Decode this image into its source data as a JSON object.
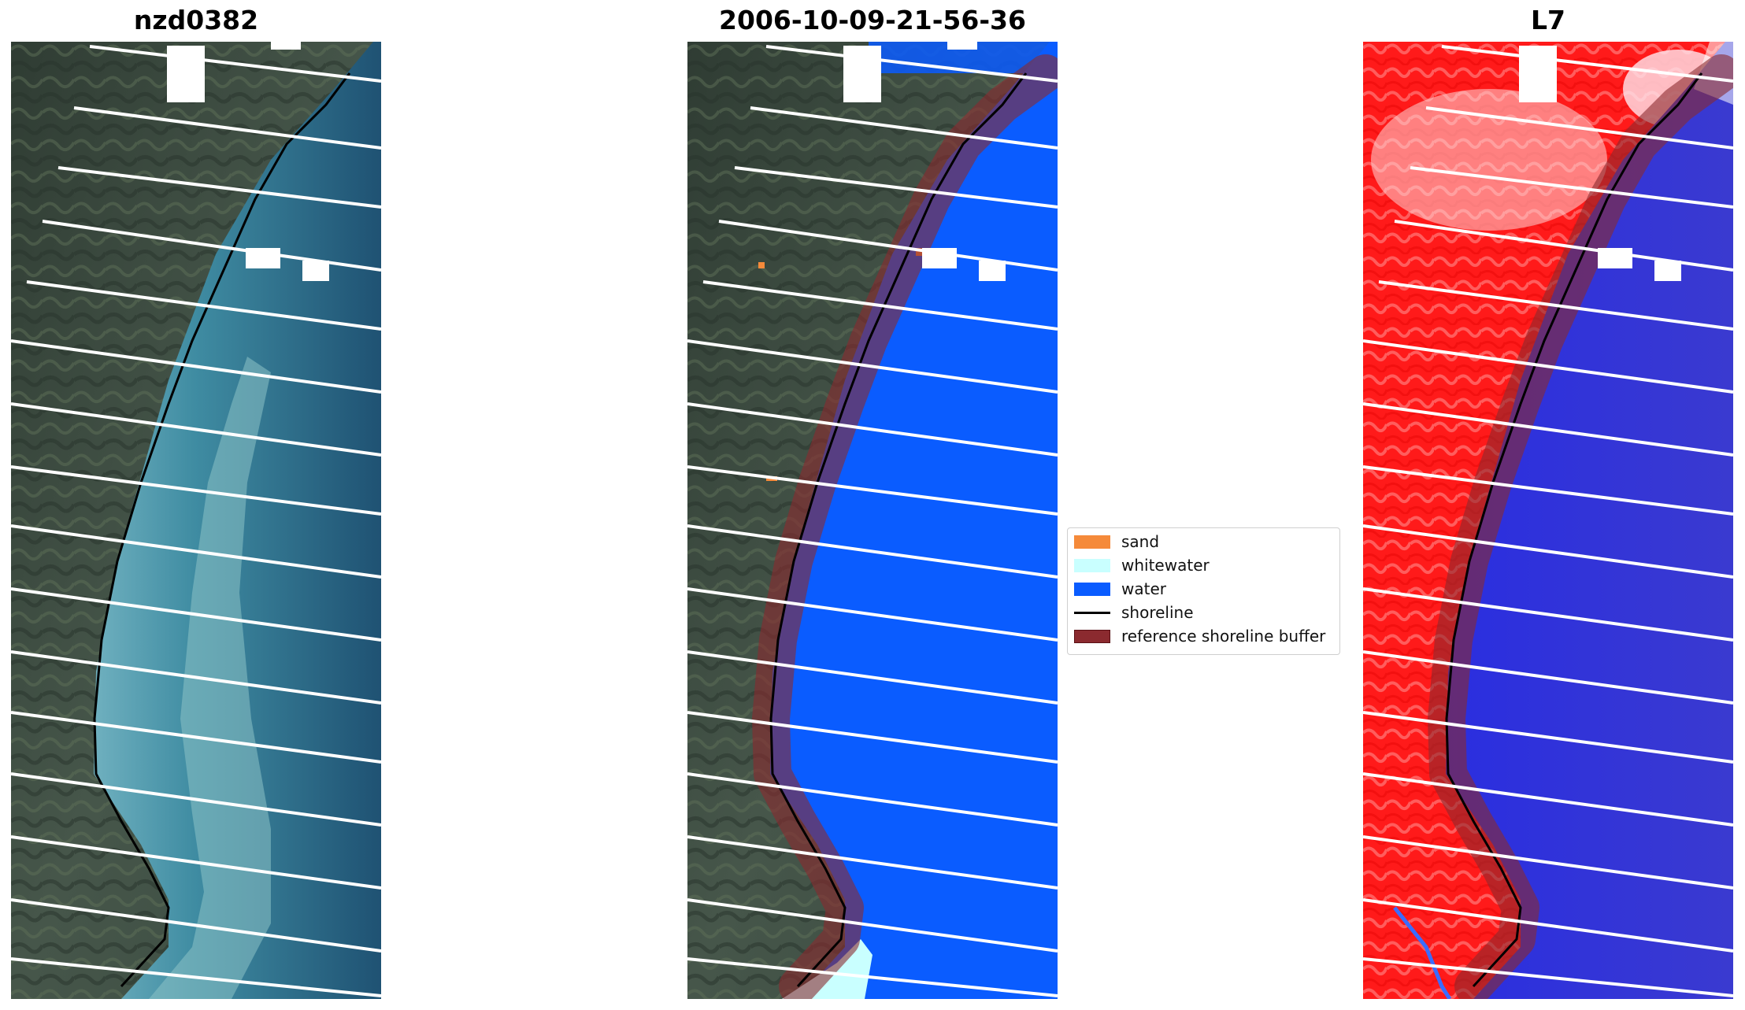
{
  "panels": {
    "left": {
      "title": "nzd0382"
    },
    "middle": {
      "title": "2006-10-09-21-56-36"
    },
    "right": {
      "title": "L7"
    }
  },
  "legend": {
    "items": [
      {
        "label": "sand",
        "color": "#f58a3a",
        "kind": "patch"
      },
      {
        "label": "whitewater",
        "color": "#c9ffff",
        "kind": "patch"
      },
      {
        "label": "water",
        "color": "#0a5cff",
        "kind": "patch"
      },
      {
        "label": "shoreline",
        "color": "#000000",
        "kind": "line"
      },
      {
        "label": "reference shoreline buffer",
        "color": "#8b2a2f",
        "kind": "patch"
      }
    ]
  }
}
